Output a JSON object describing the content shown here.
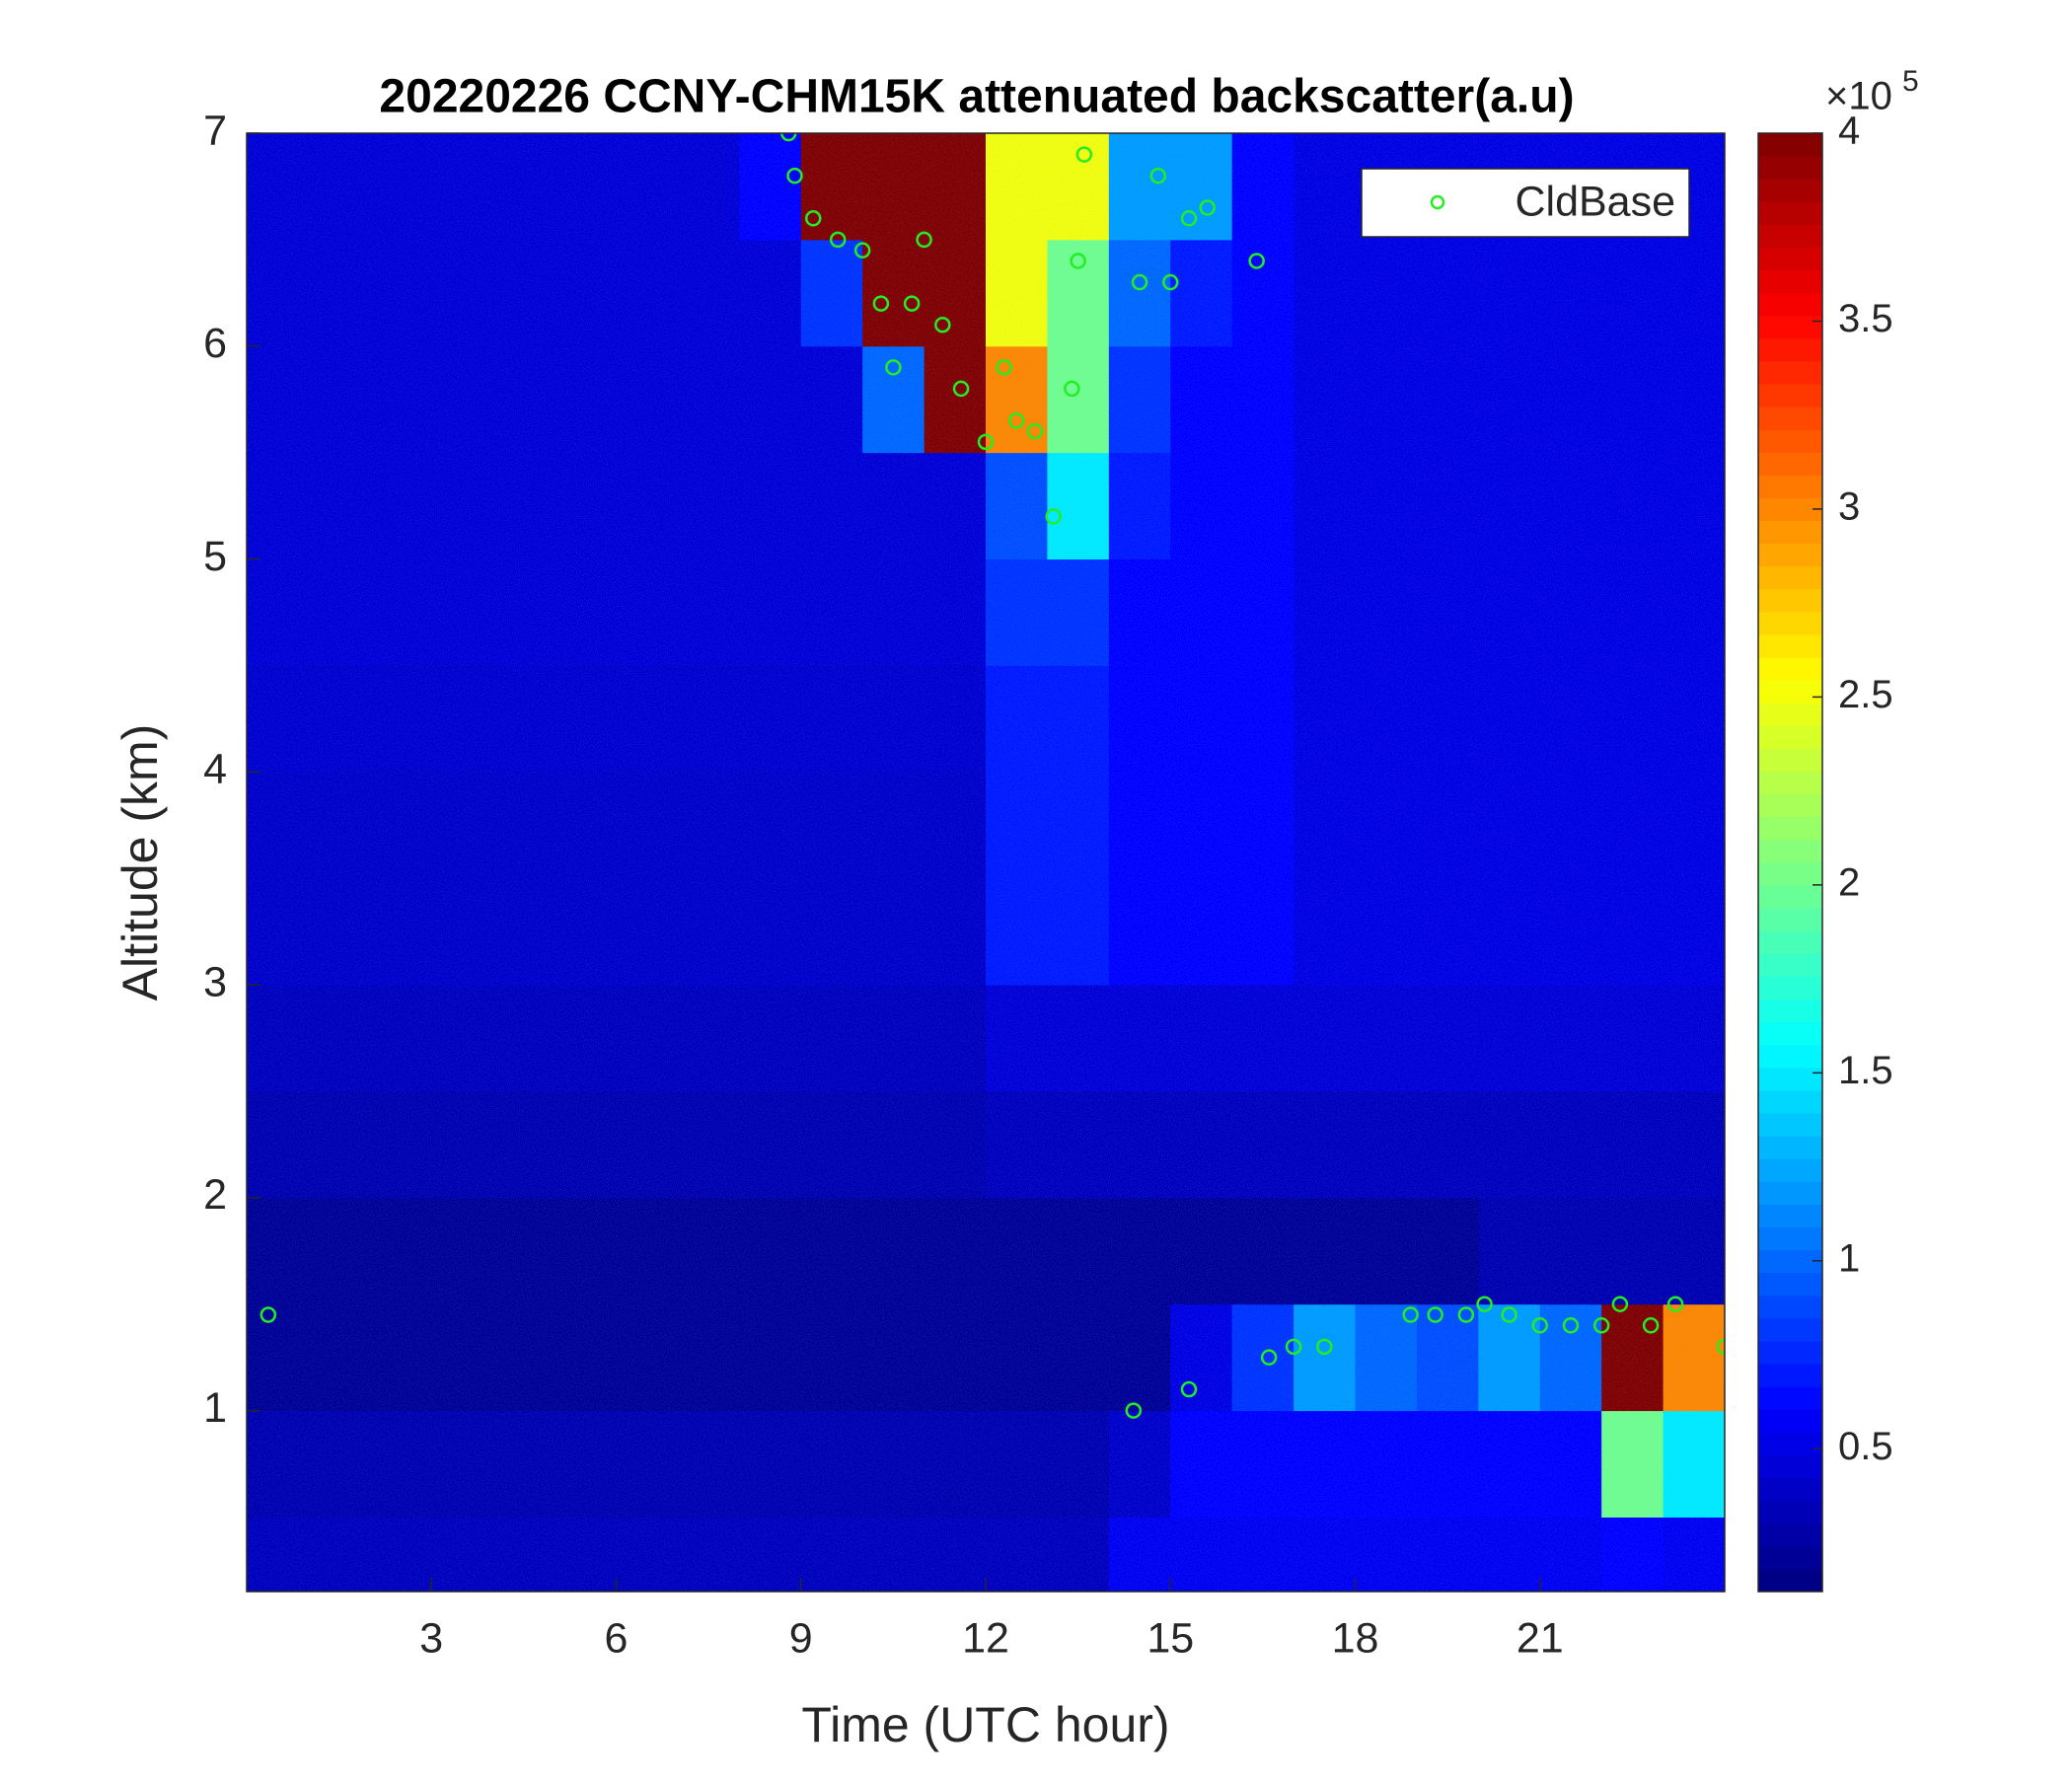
{
  "chart_data": {
    "type": "heatmap",
    "title": "20220226 CCNY-CHM15K attenuated backscatter(a.u)",
    "xlabel": "Time (UTC hour)",
    "ylabel": "Altitude (km)",
    "xlim": [
      0,
      24
    ],
    "xticks": [
      3,
      6,
      9,
      12,
      15,
      18,
      21
    ],
    "ylim": [
      0.15,
      7
    ],
    "yticks": [
      1,
      2,
      3,
      4,
      5,
      6,
      7
    ],
    "x_edges": [
      0,
      1,
      2,
      3,
      4,
      5,
      6,
      7,
      8,
      9,
      10,
      11,
      12,
      13,
      14,
      15,
      16,
      17,
      18,
      19,
      20,
      21,
      22,
      23,
      24
    ],
    "y_edges": [
      0.15,
      0.5,
      1,
      1.5,
      2,
      2.5,
      3,
      3.5,
      4,
      4.5,
      5,
      5.5,
      6,
      6.5,
      7
    ],
    "z": [
      [
        0.35,
        0.35,
        0.35,
        0.35,
        0.35,
        0.35,
        0.35,
        0.35,
        0.35,
        0.35,
        0.35,
        0.35,
        0.35,
        0.35,
        0.55,
        0.55,
        0.55,
        0.55,
        0.55,
        0.55,
        0.55,
        0.55,
        0.6,
        0.55
      ],
      [
        0.3,
        0.3,
        0.3,
        0.3,
        0.3,
        0.3,
        0.3,
        0.3,
        0.3,
        0.3,
        0.3,
        0.3,
        0.3,
        0.3,
        0.4,
        0.6,
        0.6,
        0.6,
        0.6,
        0.6,
        0.6,
        0.6,
        2.0,
        1.5
      ],
      [
        0.2,
        0.2,
        0.2,
        0.2,
        0.2,
        0.2,
        0.2,
        0.2,
        0.2,
        0.2,
        0.2,
        0.2,
        0.2,
        0.2,
        0.2,
        0.5,
        0.8,
        1.2,
        1.0,
        0.9,
        1.2,
        1.0,
        4,
        3
      ],
      [
        0.2,
        0.2,
        0.2,
        0.2,
        0.2,
        0.2,
        0.2,
        0.2,
        0.2,
        0.2,
        0.2,
        0.2,
        0.2,
        0.2,
        0.2,
        0.2,
        0.2,
        0.2,
        0.2,
        0.2,
        0.3,
        0.3,
        0.3,
        0.3
      ],
      [
        0.3,
        0.3,
        0.3,
        0.3,
        0.3,
        0.3,
        0.3,
        0.3,
        0.3,
        0.3,
        0.3,
        0.3,
        0.35,
        0.35,
        0.35,
        0.35,
        0.35,
        0.35,
        0.35,
        0.35,
        0.35,
        0.35,
        0.35,
        0.35
      ],
      [
        0.35,
        0.35,
        0.35,
        0.35,
        0.35,
        0.35,
        0.35,
        0.35,
        0.35,
        0.35,
        0.35,
        0.35,
        0.45,
        0.45,
        0.45,
        0.45,
        0.45,
        0.45,
        0.45,
        0.45,
        0.45,
        0.45,
        0.45,
        0.45
      ],
      [
        0.4,
        0.4,
        0.4,
        0.4,
        0.4,
        0.4,
        0.4,
        0.4,
        0.4,
        0.4,
        0.4,
        0.4,
        0.7,
        0.7,
        0.6,
        0.6,
        0.6,
        0.5,
        0.5,
        0.5,
        0.5,
        0.5,
        0.5,
        0.5
      ],
      [
        0.4,
        0.4,
        0.4,
        0.4,
        0.4,
        0.4,
        0.4,
        0.4,
        0.4,
        0.4,
        0.4,
        0.4,
        0.7,
        0.7,
        0.6,
        0.6,
        0.6,
        0.5,
        0.5,
        0.5,
        0.5,
        0.5,
        0.5,
        0.5
      ],
      [
        0.42,
        0.42,
        0.42,
        0.42,
        0.42,
        0.42,
        0.42,
        0.42,
        0.42,
        0.42,
        0.42,
        0.42,
        0.7,
        0.7,
        0.6,
        0.6,
        0.6,
        0.5,
        0.5,
        0.5,
        0.5,
        0.5,
        0.5,
        0.5
      ],
      [
        0.45,
        0.45,
        0.45,
        0.45,
        0.45,
        0.45,
        0.45,
        0.45,
        0.45,
        0.45,
        0.45,
        0.45,
        0.8,
        0.8,
        0.6,
        0.6,
        0.6,
        0.5,
        0.5,
        0.5,
        0.5,
        0.5,
        0.5,
        0.5
      ],
      [
        0.45,
        0.45,
        0.45,
        0.45,
        0.45,
        0.45,
        0.45,
        0.45,
        0.45,
        0.45,
        0.45,
        0.45,
        0.9,
        1.5,
        0.7,
        0.6,
        0.6,
        0.5,
        0.5,
        0.5,
        0.5,
        0.5,
        0.5,
        0.5
      ],
      [
        0.45,
        0.45,
        0.45,
        0.45,
        0.45,
        0.45,
        0.45,
        0.45,
        0.45,
        0.45,
        1.0,
        4,
        3,
        2,
        0.8,
        0.6,
        0.6,
        0.5,
        0.5,
        0.5,
        0.5,
        0.5,
        0.5,
        0.5
      ],
      [
        0.45,
        0.45,
        0.45,
        0.45,
        0.45,
        0.45,
        0.45,
        0.45,
        0.45,
        0.8,
        4,
        4,
        2.5,
        2,
        1.0,
        0.7,
        0.6,
        0.5,
        0.5,
        0.5,
        0.5,
        0.5,
        0.5,
        0.5
      ],
      [
        0.45,
        0.45,
        0.45,
        0.45,
        0.45,
        0.45,
        0.45,
        0.45,
        0.6,
        4,
        4,
        4,
        2.5,
        2.5,
        1.2,
        1.2,
        0.6,
        0.5,
        0.5,
        0.5,
        0.5,
        0.5,
        0.5,
        0.5
      ]
    ],
    "clim": [
      0.12,
      4
    ],
    "cticks": [
      0.5,
      1,
      1.5,
      2,
      2.5,
      3,
      3.5,
      4
    ],
    "cexp_base": "×10",
    "cexp_power": "5",
    "overlay": {
      "type": "scatter",
      "name": "CldBase",
      "color": "#22ee22",
      "x": [
        0.35,
        8.8,
        8.9,
        9.2,
        9.6,
        10.0,
        10.3,
        10.5,
        10.8,
        11.0,
        11.3,
        11.6,
        12.0,
        12.3,
        12.5,
        12.8,
        13.1,
        13.4,
        13.5,
        13.6,
        14.5,
        14.8,
        15.0,
        15.3,
        15.6,
        16.4,
        14.4,
        15.3,
        16.6,
        17.0,
        17.5,
        18.9,
        19.3,
        19.8,
        20.1,
        20.5,
        21.0,
        21.5,
        22.0,
        22.3,
        22.8,
        23.2,
        24.0
      ],
      "y": [
        1.45,
        7.0,
        6.8,
        6.6,
        6.5,
        6.45,
        6.2,
        5.9,
        6.2,
        6.5,
        6.1,
        5.8,
        5.55,
        5.9,
        5.65,
        5.6,
        5.2,
        5.8,
        6.4,
        6.9,
        6.3,
        6.8,
        6.3,
        6.6,
        6.65,
        6.4,
        1.0,
        1.1,
        1.25,
        1.3,
        1.3,
        1.45,
        1.45,
        1.45,
        1.5,
        1.45,
        1.4,
        1.4,
        1.4,
        1.5,
        1.4,
        1.5,
        1.3
      ]
    }
  }
}
